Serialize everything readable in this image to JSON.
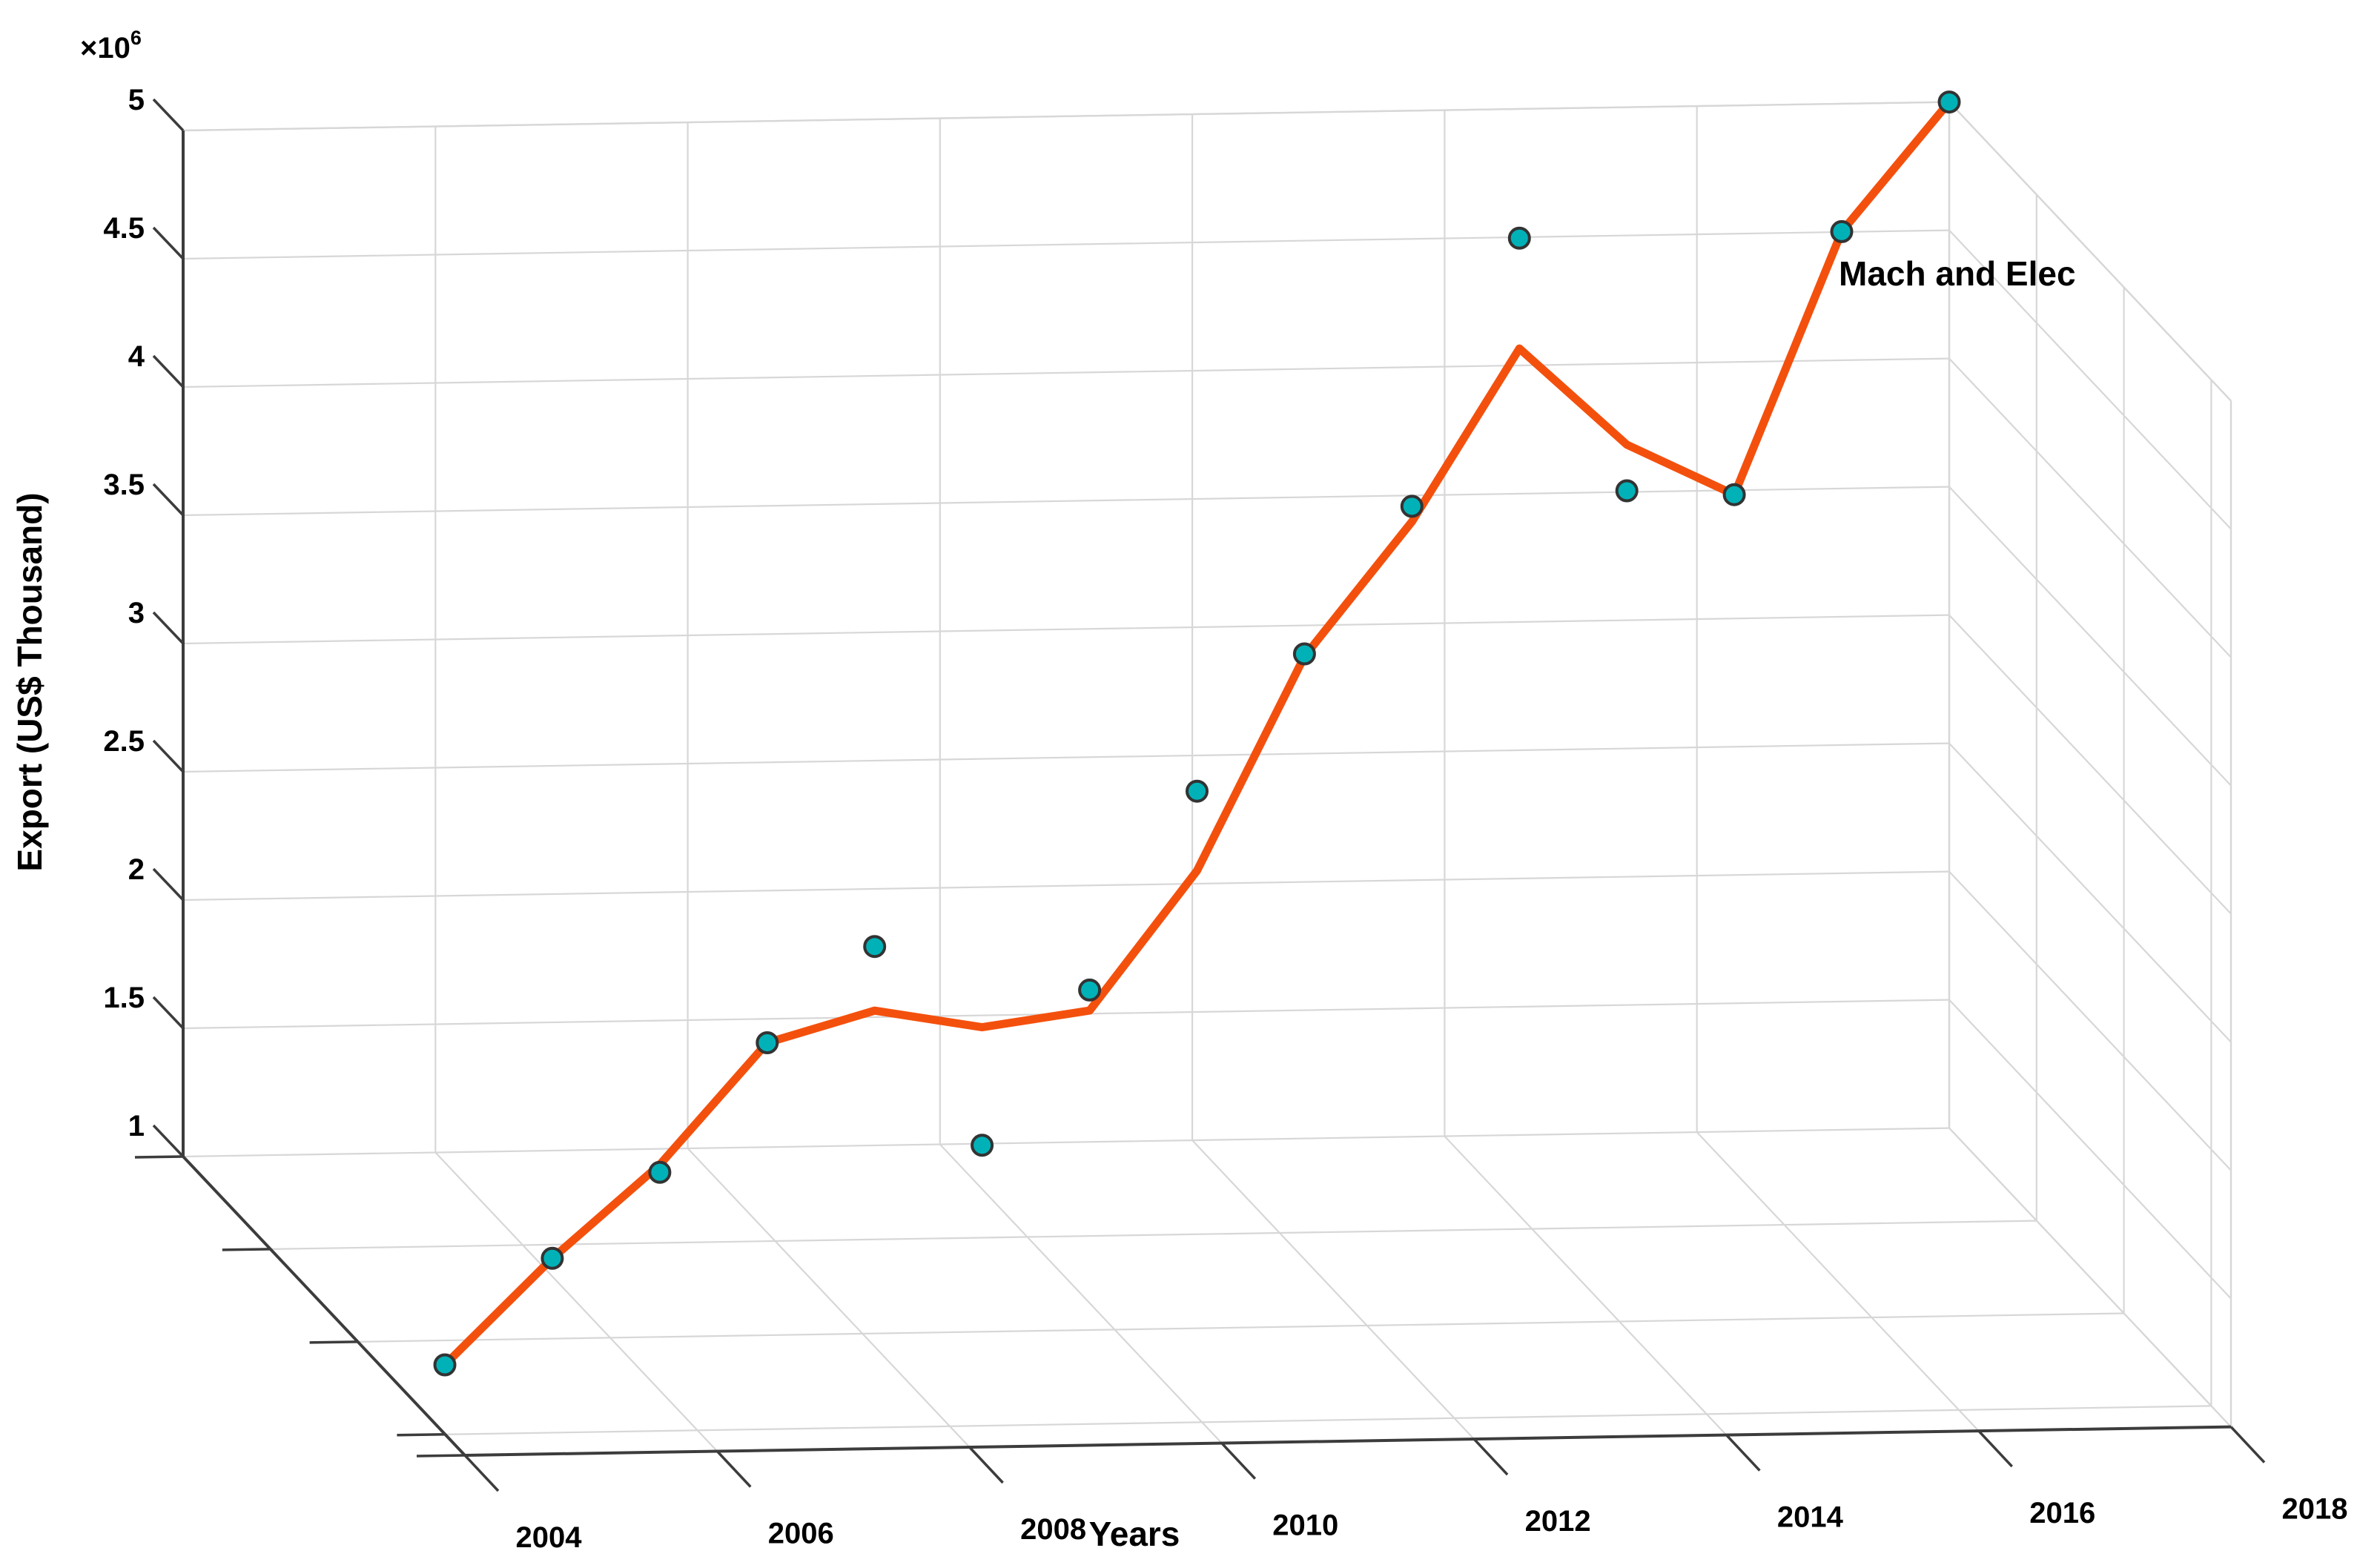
{
  "chart_data": {
    "type": "line",
    "render_style": "3d-line-with-scatter-markers",
    "annotation": "Mach and Elec",
    "xlabel": "Years",
    "zlabel": "Export (US$ Thousand)",
    "z_multiplier_base": "×10",
    "z_multiplier_exp": "6",
    "x": [
      2004,
      2005,
      2006,
      2007,
      2008,
      2009,
      2010,
      2011,
      2012,
      2013,
      2014,
      2015,
      2016,
      2017,
      2018
    ],
    "x_ticks": [
      2004,
      2006,
      2008,
      2010,
      2012,
      2014,
      2016,
      2018
    ],
    "z_ticks": [
      1,
      1.5,
      2,
      2.5,
      3,
      3.5,
      4,
      4.5,
      5
    ],
    "xlim": [
      2004,
      2018
    ],
    "zlim": [
      1,
      5
    ],
    "units": "US$ Thousand, values in millions (×10^6)",
    "grid": true,
    "series": [
      {
        "id": "trend-line",
        "type": "line",
        "values": [
          1.27,
          1.6,
          1.88,
          2.27,
          2.31,
          2.16,
          2.14,
          2.6,
          3.35,
          3.79,
          4.38,
          3.92,
          3.64,
          4.58,
          5.0
        ]
      },
      {
        "id": "data-points",
        "type": "scatter",
        "values": [
          1.27,
          1.6,
          1.85,
          2.27,
          2.56,
          1.7,
          2.22,
          2.91,
          3.36,
          3.85,
          4.81,
          3.74,
          3.64,
          4.58,
          5.0
        ]
      }
    ],
    "colors": {
      "line": "#F4500D",
      "marker_fill": "#00B2B8",
      "marker_edge": "#333333",
      "grid": "#D7D7D7",
      "axis": "#3C3C3C",
      "text": "#000000",
      "background": "#FFFFFF"
    }
  }
}
